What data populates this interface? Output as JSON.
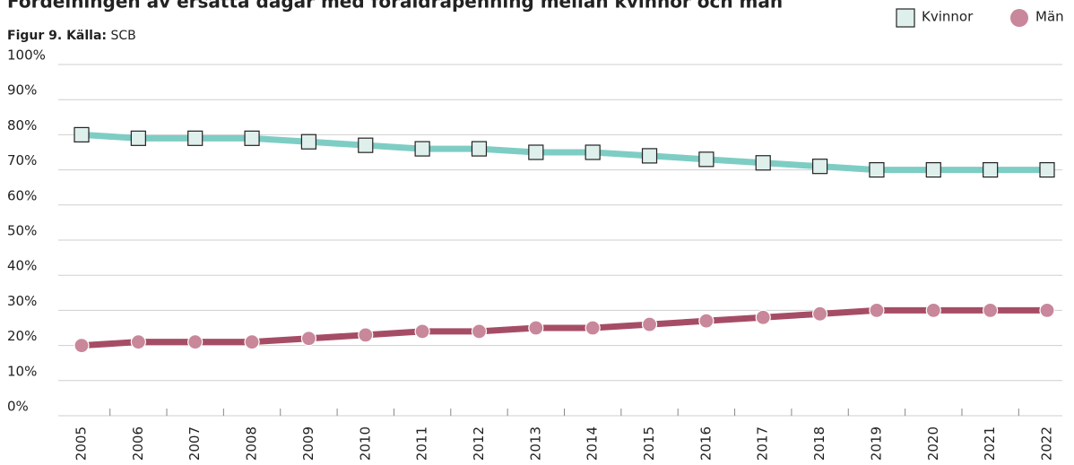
{
  "chart_data": {
    "type": "line",
    "title": "Fördelningen av ersatta dagar med föräldrapenning mellan kvinnor och män",
    "source_label": "Figur 9. Källa:",
    "source": "SCB",
    "categories": [
      "2005",
      "2006",
      "2007",
      "2008",
      "2009",
      "2010",
      "2011",
      "2012",
      "2013",
      "2014",
      "2015",
      "2016",
      "2017",
      "2018",
      "2019",
      "2020",
      "2021",
      "2022"
    ],
    "series": [
      {
        "name": "Kvinnor",
        "color": "#7ecdc4",
        "marker_color": "#dff0ec",
        "marker": "square",
        "values": [
          80,
          79,
          79,
          79,
          78,
          77,
          76,
          76,
          75,
          75,
          74,
          73,
          72,
          71,
          70,
          70,
          70,
          70
        ]
      },
      {
        "name": "Män",
        "color": "#a64d66",
        "marker_color": "#c8879a",
        "marker": "circle",
        "values": [
          20,
          21,
          21,
          21,
          22,
          23,
          24,
          24,
          25,
          25,
          26,
          27,
          28,
          29,
          30,
          30,
          30,
          30
        ]
      }
    ],
    "ylim": [
      0,
      100
    ],
    "yticks": [
      {
        "value": 0,
        "label": "0%"
      },
      {
        "value": 10,
        "label": "10%"
      },
      {
        "value": 20,
        "label": "20%"
      },
      {
        "value": 30,
        "label": "30%"
      },
      {
        "value": 40,
        "label": "40%"
      },
      {
        "value": 50,
        "label": "50%"
      },
      {
        "value": 60,
        "label": "60%"
      },
      {
        "value": 70,
        "label": "70%"
      },
      {
        "value": 80,
        "label": "80%"
      },
      {
        "value": 90,
        "label": "90%"
      },
      {
        "value": 100,
        "label": "100%"
      }
    ],
    "grid": true,
    "legend": "top-right"
  }
}
